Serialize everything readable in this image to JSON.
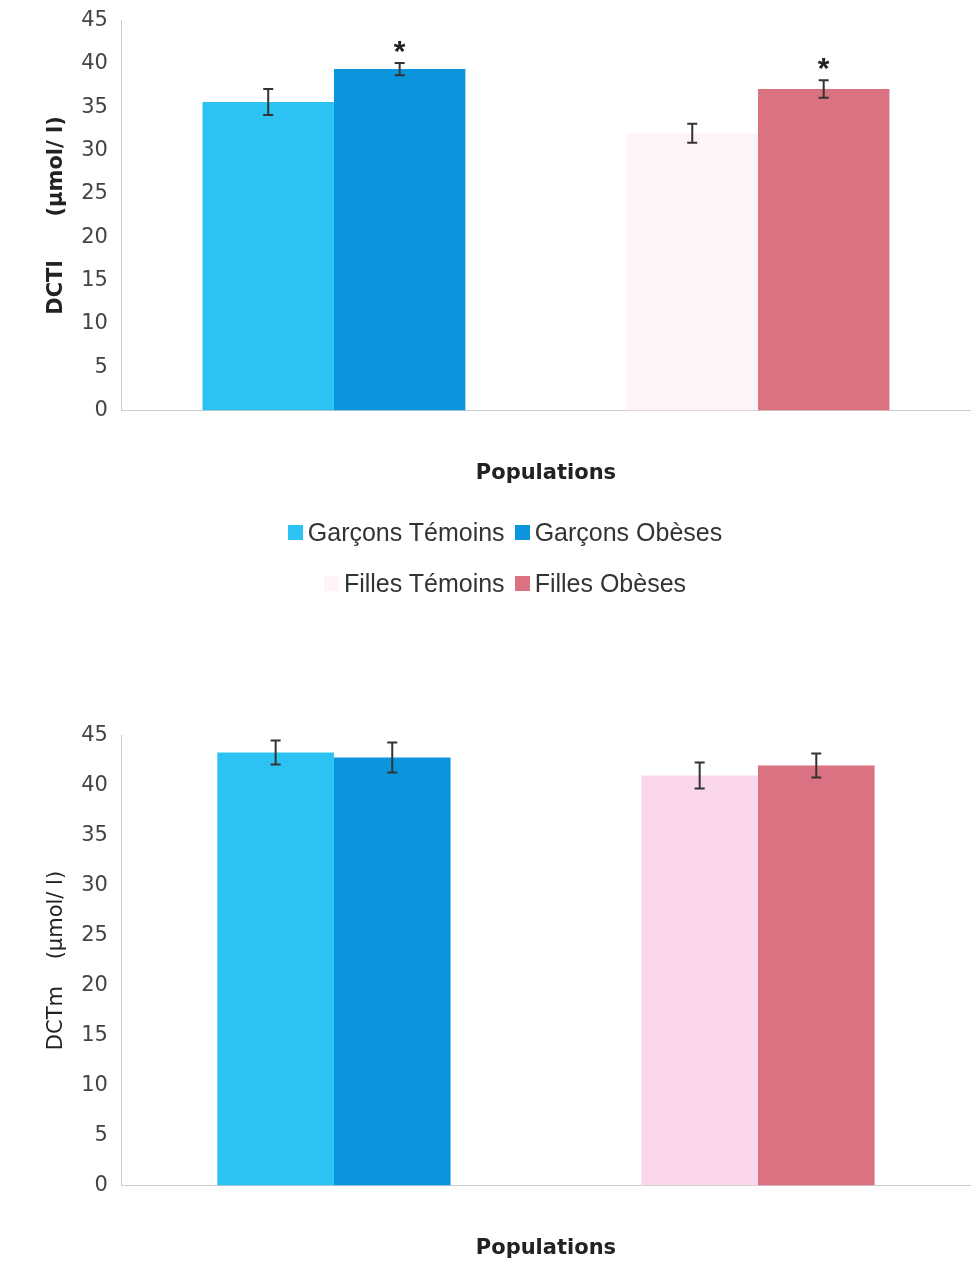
{
  "chart_data": [
    {
      "type": "bar",
      "xlabel": "Populations",
      "ylabel": "DCTl      (µmol/ l)",
      "categories": [
        null,
        null
      ],
      "ylim": [
        0,
        45
      ],
      "yticks": [
        0,
        5,
        10,
        15,
        20,
        25,
        30,
        35,
        40,
        45
      ],
      "grid": false,
      "legend": "bottom",
      "series": [
        {
          "name": "Garçons Témoins",
          "color": "#2cc3f2",
          "values": [
            35.6,
            null
          ],
          "errors": [
            1.5,
            null
          ]
        },
        {
          "name": "Garçons Obèses",
          "color": "#0a95dd",
          "values": [
            39.4,
            null
          ],
          "errors": [
            0.7,
            null
          ],
          "value_labels": [
            "*",
            null
          ]
        },
        {
          "name": "Filles Témoins",
          "color": "#fdf3f8",
          "values": [
            null,
            32
          ],
          "errors": [
            null,
            1.1
          ]
        },
        {
          "name": "Filles Obèses",
          "color": "#da7282",
          "values": [
            null,
            37.1
          ],
          "errors": [
            null,
            1.0
          ],
          "value_labels": [
            null,
            "*"
          ]
        }
      ]
    },
    {
      "type": "bar",
      "xlabel": "Populations",
      "ylabel": "DCTm    (µmol/ l)",
      "categories": [
        null,
        null
      ],
      "ylim": [
        0,
        45
      ],
      "yticks": [
        0,
        5,
        10,
        15,
        20,
        25,
        30,
        35,
        40,
        45
      ],
      "grid": false,
      "legend": false,
      "series": [
        {
          "color": "#2cc3f2",
          "values": [
            43.3,
            null
          ],
          "errors": [
            1.2,
            null
          ]
        },
        {
          "color": "#0a95dd",
          "values": [
            42.8,
            null
          ],
          "errors": [
            1.5,
            null
          ]
        },
        {
          "color": "#f9d6ea",
          "values": [
            null,
            41.0
          ],
          "errors": [
            null,
            1.3
          ]
        },
        {
          "color": "#da7282",
          "values": [
            null,
            42.0
          ],
          "errors": [
            null,
            1.2
          ]
        }
      ]
    }
  ]
}
